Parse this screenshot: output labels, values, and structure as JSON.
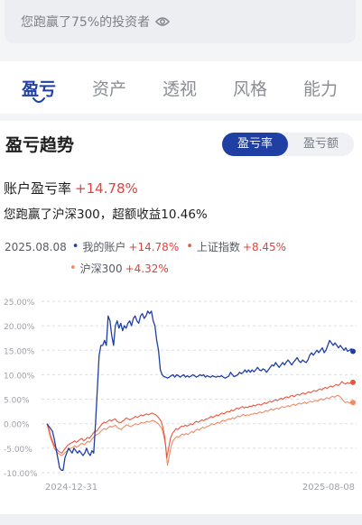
{
  "beat_banner": {
    "text": "您跑赢了75%的投资者",
    "icon": "eye-icon"
  },
  "tabs": [
    {
      "label": "盈亏",
      "active": true
    },
    {
      "label": "资产",
      "active": false
    },
    {
      "label": "透视",
      "active": false
    },
    {
      "label": "风格",
      "active": false
    },
    {
      "label": "能力",
      "active": false
    }
  ],
  "section": {
    "title": "盈亏趋势",
    "toggle": [
      {
        "label": "盈亏率",
        "active": true
      },
      {
        "label": "盈亏额",
        "active": false
      }
    ]
  },
  "summary": {
    "rate_label": "账户盈亏率",
    "rate_value": "+14.78%",
    "beat_text": "您跑赢了沪深300，超额收益10.46%"
  },
  "legend": {
    "date": "2025.08.08",
    "items": [
      {
        "name": "我的账户",
        "value": "+14.78%"
      },
      {
        "name": "上证指数",
        "value": "+8.45%"
      },
      {
        "name": "沪深300",
        "value": "+4.32%"
      }
    ]
  },
  "colors": {
    "accent": "#1f3fa2",
    "account": "#1f3fa2",
    "sse": "#e8553e",
    "csi300": "#f08a62",
    "positive": "#e1423c"
  },
  "chart_data": {
    "type": "line",
    "ylim": [
      -10,
      25
    ],
    "y_ticks": [
      "25.00%",
      "20.00%",
      "15.00%",
      "10.00%",
      "5.00%",
      "0.00%",
      "-5.00%",
      "-10.00%"
    ],
    "x_labels": [
      "2024-12-31",
      "2025-08-08"
    ],
    "x_start": "2024-12-31",
    "x_end": "2025-08-08",
    "series": [
      {
        "name": "我的账户",
        "values": [
          0,
          -0.5,
          -1,
          -1.5,
          -3,
          -5,
          -7,
          -9,
          -9.5,
          -9.5,
          -7,
          -6,
          -5,
          -5.5,
          -6,
          -5,
          -5.5,
          -6,
          -5.5,
          -6,
          -6.5,
          -6,
          -5,
          -6,
          -6.5,
          -5.5,
          -6,
          0,
          7,
          14,
          16,
          16,
          17,
          16,
          22,
          21,
          18,
          16,
          20,
          21,
          19.5,
          20.5,
          19,
          20,
          19.5,
          20.5,
          21,
          20,
          21.5,
          22,
          21,
          20.5,
          22,
          22.5,
          21.5,
          22,
          23,
          22.5,
          23,
          21,
          20,
          17,
          15,
          11,
          10,
          9.6,
          9.5,
          9.3,
          9.5,
          9.8,
          10,
          9.5,
          10,
          9.8,
          9.5,
          9.8,
          10,
          9.5,
          9.8,
          9.5,
          9.7,
          10,
          9.8,
          9.5,
          9.7,
          10,
          9.8,
          10,
          9.5,
          9.8,
          9.6,
          9.5,
          9.8,
          9.6,
          9.5,
          9.7,
          9.6,
          9.8,
          9.5,
          9.3,
          9.5,
          9.7,
          10.5,
          10,
          9.6,
          9.8,
          10,
          10.5,
          10.2,
          10.5,
          11,
          10.5,
          11,
          10.5,
          11,
          10.6,
          11,
          11.5,
          11,
          10.8,
          11.2,
          11,
          10.5,
          11,
          11.5,
          12,
          11.8,
          12.5,
          12,
          11.5,
          12,
          12.5,
          12,
          12.6,
          13,
          12.5,
          12,
          12.6,
          13,
          13.5,
          12.8,
          12.5,
          13,
          12.7,
          12.5,
          13,
          14,
          14.5,
          14,
          14.5,
          15,
          14.5,
          15,
          15.5,
          14.5,
          15,
          16,
          17,
          16.5,
          16,
          16.5,
          16,
          15.5,
          16,
          15.5,
          15,
          15.5,
          14.8,
          15,
          15.3,
          14.78
        ]
      },
      {
        "name": "上证指数",
        "values": [
          0,
          -1,
          -2.5,
          -3.5,
          -4.5,
          -5,
          -5.5,
          -5.8,
          -6,
          -5.5,
          -5,
          -4.5,
          -4.2,
          -4,
          -3.8,
          -3.5,
          -3.8,
          -3.5,
          -3.2,
          -3,
          -3.5,
          -3.2,
          -2.8,
          -3,
          -2.5,
          -2,
          -1.5,
          -1.5,
          -1,
          -0.5,
          0,
          0.3,
          0.2,
          0.5,
          0.8,
          0.6,
          0.8,
          1,
          0.5,
          0.3,
          0.2,
          0.5,
          0.8,
          1.2,
          1,
          0.8,
          1,
          1.2,
          1.5,
          1.3,
          1.5,
          1.8,
          1.6,
          1.8,
          2,
          1.8,
          2,
          2.2,
          2,
          1.8,
          1.5,
          1,
          0.5,
          -1,
          -3,
          -7,
          -5,
          -3,
          -2,
          -1.5,
          -1,
          -1.2,
          -0.8,
          -0.5,
          -0.6,
          -0.3,
          -0.5,
          -0.3,
          0,
          -0.2,
          0.2,
          0.5,
          0.3,
          0.5,
          0.8,
          0.6,
          0.9,
          1,
          1.2,
          1.5,
          1.3,
          1.5,
          1.8,
          1.6,
          2,
          2.2,
          2,
          2.3,
          2.5,
          2.4,
          2.8,
          2.6,
          2.9,
          3.2,
          3,
          3.3,
          3.5,
          3.2,
          3.4,
          3.3,
          3.6,
          3.5,
          3.8,
          3.6,
          3.9,
          4,
          3.8,
          4,
          4.3,
          4.1,
          4.4,
          4.6,
          4.4,
          4.7,
          4.9,
          4.7,
          5,
          5.2,
          5,
          5.3,
          5.5,
          5.3,
          5.6,
          5.8,
          5.5,
          5.8,
          6,
          5.8,
          6.1,
          6.3,
          6,
          6.3,
          6.5,
          6.3,
          6.6,
          6.8,
          6.6,
          6.9,
          7.1,
          6.9,
          7.2,
          7.4,
          7.2,
          7.5,
          7.7,
          7.5,
          7.8,
          8,
          7.8,
          8.1,
          8.6,
          8.3,
          8.1,
          8.4,
          8.2,
          8.5,
          8.45
        ]
      },
      {
        "name": "沪深300",
        "values": [
          0,
          -1.5,
          -3,
          -4,
          -5,
          -5.6,
          -6,
          -6.3,
          -6.5,
          -6.2,
          -5.8,
          -5.5,
          -5.2,
          -5,
          -4.8,
          -4.5,
          -4.8,
          -4.6,
          -4.2,
          -4,
          -4.3,
          -4,
          -3.6,
          -3.8,
          -3.3,
          -2.8,
          -2.4,
          -2.2,
          -2,
          -1.6,
          -1.2,
          -1,
          -1.2,
          -0.8,
          -0.5,
          -0.7,
          -0.5,
          -0.3,
          -0.8,
          -1,
          -1.2,
          -0.8,
          -0.5,
          -0.2,
          -0.4,
          -0.6,
          -0.4,
          -0.2,
          0,
          -0.2,
          0,
          0.3,
          0.1,
          0.3,
          0.5,
          0.3,
          0.5,
          0.7,
          0.5,
          0.3,
          0,
          -0.5,
          -1,
          -2.5,
          -4.5,
          -8.5,
          -6.5,
          -4.5,
          -3.5,
          -3,
          -2.6,
          -2.8,
          -2.4,
          -2.1,
          -2.3,
          -2,
          -2.2,
          -1.9,
          -1.6,
          -1.8,
          -1.4,
          -1.1,
          -1.3,
          -1,
          -0.7,
          -0.9,
          -0.6,
          -0.5,
          -0.3,
          0,
          -0.2,
          0,
          0.3,
          0.1,
          0.5,
          0.7,
          0.5,
          0.8,
          1,
          0.9,
          1.2,
          1,
          1.3,
          1.6,
          1.4,
          1.7,
          1.9,
          1.6,
          1.8,
          1.7,
          2,
          1.9,
          2.2,
          2,
          2.3,
          2.4,
          2.2,
          2.4,
          2.7,
          2.5,
          2.8,
          3,
          2.8,
          3,
          3.2,
          3,
          3.3,
          3.5,
          3.3,
          3.5,
          3.7,
          3.5,
          3.8,
          4,
          3.7,
          4,
          4.2,
          4,
          4.2,
          4.4,
          4.1,
          4.4,
          4.6,
          4.4,
          4.6,
          4.8,
          4.6,
          4.9,
          5.1,
          4.8,
          5.1,
          5.3,
          5.1,
          5.4,
          5.6,
          5.4,
          5.7,
          5.8,
          5.5,
          5.1,
          4.6,
          4.3,
          4.5,
          4.2,
          4.4,
          4.32
        ]
      }
    ]
  }
}
